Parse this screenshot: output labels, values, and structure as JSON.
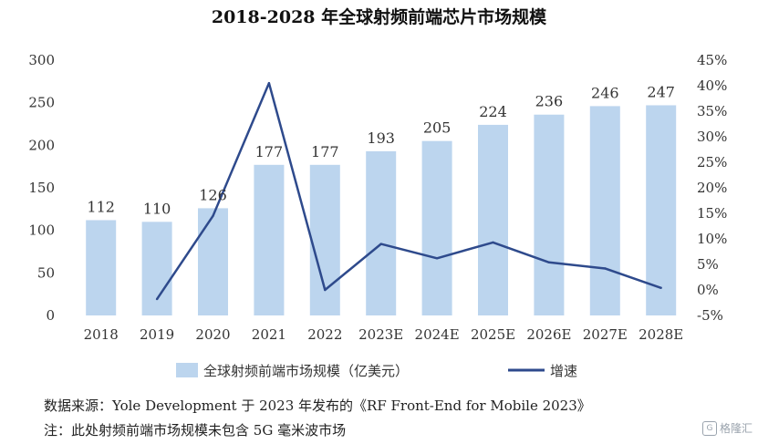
{
  "title": "2018-2028 年全球射频前端芯片市场规模",
  "chart_data": {
    "type": "bar",
    "categories": [
      "2018",
      "2019",
      "2020",
      "2021",
      "2022",
      "2023E",
      "2024E",
      "2025E",
      "2026E",
      "2027E",
      "2028E"
    ],
    "series": [
      {
        "name": "全球射频前端市场规模（亿美元）",
        "type": "bar",
        "axis": "left",
        "color": "#bcd5ee",
        "values": [
          112,
          110,
          126,
          177,
          177,
          193,
          205,
          224,
          236,
          246,
          247
        ]
      },
      {
        "name": "增速",
        "type": "line",
        "axis": "right",
        "color": "#2e4a8c",
        "values": [
          null,
          -1.8,
          14.5,
          40.5,
          0.0,
          9.0,
          6.2,
          9.3,
          5.4,
          4.2,
          0.4
        ]
      }
    ],
    "left_axis": {
      "ylim": [
        0,
        300
      ],
      "ticks": [
        "0",
        "50",
        "100",
        "150",
        "200",
        "250",
        "300"
      ]
    },
    "right_axis": {
      "ylim": [
        -5,
        45
      ],
      "ticks": [
        "-5%",
        "0%",
        "5%",
        "10%",
        "15%",
        "20%",
        "25%",
        "30%",
        "35%",
        "40%",
        "45%"
      ]
    },
    "grid": false,
    "legend_position": "bottom",
    "data_labels": true
  },
  "footnotes": {
    "source": "数据来源：Yole Development 于 2023 年发布的《RF Front-End for Mobile 2023》",
    "scope": "注：此处射频前端市场规模未包含 5G 毫米波市场"
  },
  "watermark": {
    "logo": "G",
    "text": "格隆汇"
  }
}
